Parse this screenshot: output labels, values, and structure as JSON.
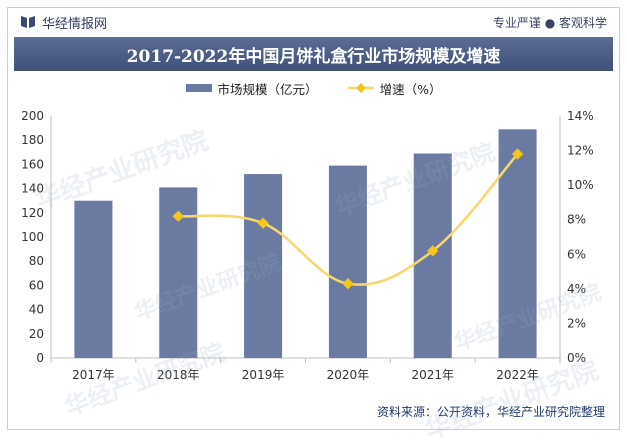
{
  "header": {
    "brand": "华经情报网",
    "tagline": "专业严谨 ● 客观科学"
  },
  "title": "2017-2022年中国月饼礼盒行业市场规模及增速",
  "source": "资料来源：公开资料，华经产业研究院整理",
  "watermark": "华经产业研究院",
  "colors": {
    "bar": "#6b7aa1",
    "line": "#f9d769",
    "marker": "#f5c518",
    "title_bg": "#4a5a82"
  },
  "chart_data": {
    "type": "bar",
    "categories": [
      "2017年",
      "2018年",
      "2019年",
      "2020年",
      "2021年",
      "2022年"
    ],
    "series": [
      {
        "name": "市场规模（亿元）",
        "type": "bar",
        "axis": "left",
        "values": [
          130,
          141,
          152,
          159,
          169,
          189
        ]
      },
      {
        "name": "增速（%）",
        "type": "line",
        "axis": "right",
        "values": [
          null,
          8.2,
          7.8,
          4.3,
          6.2,
          11.8
        ]
      }
    ],
    "ylim_left": [
      0,
      200
    ],
    "yticks_left": [
      "0",
      "20",
      "40",
      "60",
      "80",
      "100",
      "120",
      "140",
      "160",
      "180",
      "200"
    ],
    "ylim_right": [
      0,
      14
    ],
    "yticks_right": [
      "0%",
      "2%",
      "4%",
      "6%",
      "8%",
      "10%",
      "12%",
      "14%"
    ],
    "grid": false,
    "legend_position": "top-center"
  }
}
